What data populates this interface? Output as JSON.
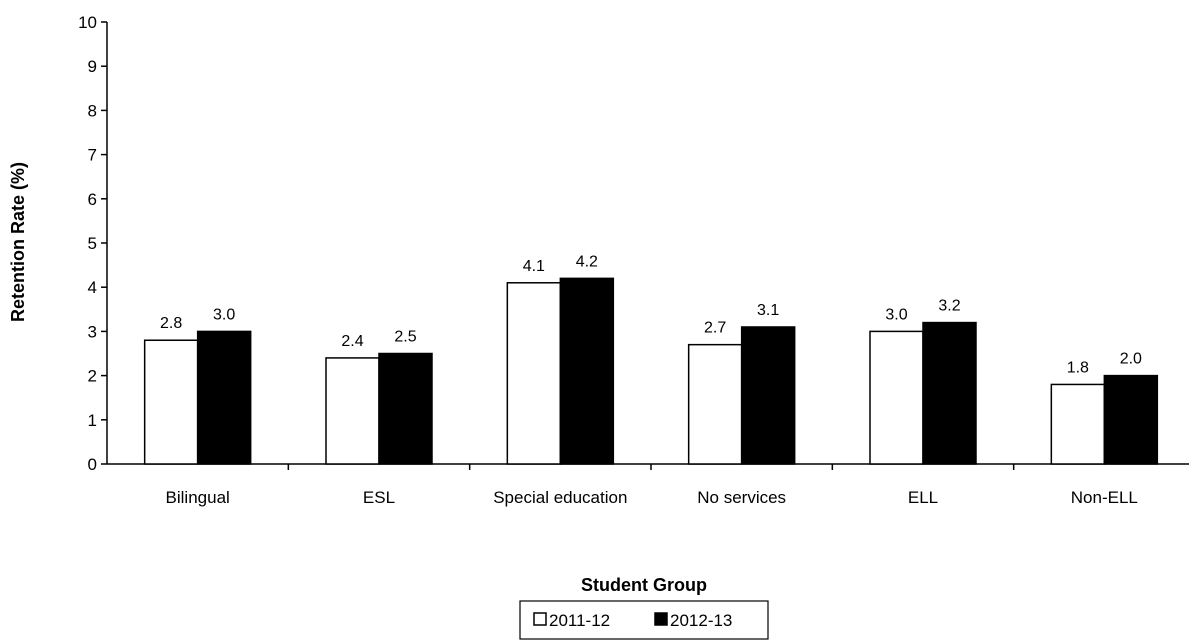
{
  "chart_data": {
    "type": "bar",
    "title": "",
    "xlabel": "Student Group",
    "ylabel": "Retention Rate (%)",
    "ylim": [
      0,
      10
    ],
    "yticks": [
      0,
      1,
      2,
      3,
      4,
      5,
      6,
      7,
      8,
      9,
      10
    ],
    "grid": false,
    "legend_position": "bottom",
    "categories": [
      "Bilingual",
      "ESL",
      "Special education",
      "No services",
      "ELL",
      "Non-ELL"
    ],
    "series": [
      {
        "name": "2011-12",
        "fill": "#ffffff",
        "stroke": "#000000",
        "values": [
          2.8,
          2.4,
          4.1,
          2.7,
          3.0,
          1.8
        ],
        "labels": [
          "2.8",
          "2.4",
          "4.1",
          "2.7",
          "3.0",
          "1.8"
        ]
      },
      {
        "name": "2012-13",
        "fill": "#000000",
        "stroke": "#000000",
        "values": [
          3.0,
          2.5,
          4.2,
          3.1,
          3.2,
          2.0
        ],
        "labels": [
          "3.0",
          "2.5",
          "4.2",
          "3.1",
          "3.2",
          "2.0"
        ]
      }
    ]
  }
}
